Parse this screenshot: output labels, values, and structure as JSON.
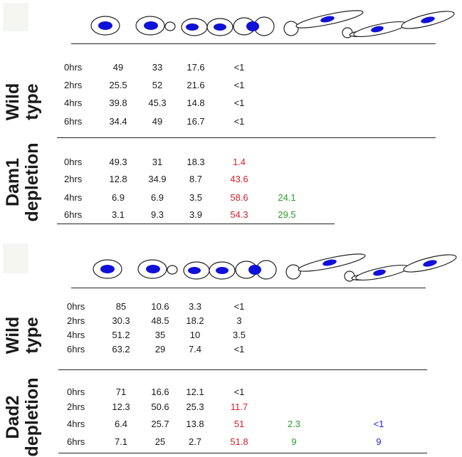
{
  "colors": {
    "nucleus": "#1010d8",
    "default_value": "#1a1a1a",
    "stage4": "#d01f2a",
    "stage5": "#2a9a2a",
    "stage6": "#2020e0"
  },
  "panels": [
    {
      "id": "dam1",
      "groups": [
        {
          "label_line1": "Wild",
          "label_line2": "type",
          "rows": [
            {
              "time": "0hrs",
              "values": [
                "49",
                "33",
                "17.6",
                "<1",
                "",
                ""
              ]
            },
            {
              "time": "2hrs",
              "values": [
                "25.5",
                "52",
                "21.6",
                "<1",
                "",
                ""
              ]
            },
            {
              "time": "4hrs",
              "values": [
                "39.8",
                "45.3",
                "14.8",
                "<1",
                "",
                ""
              ]
            },
            {
              "time": "6hrs",
              "values": [
                "34.4",
                "49",
                "16.7",
                "<1",
                "",
                ""
              ]
            }
          ]
        },
        {
          "label_line1": "Dam1",
          "label_line2": "depletion",
          "rows": [
            {
              "time": "0hrs",
              "values": [
                "49.3",
                "31",
                "18.3",
                "1.4",
                "",
                ""
              ]
            },
            {
              "time": "2hrs",
              "values": [
                "12.8",
                "34.9",
                "8.7",
                "43.6",
                "",
                ""
              ]
            },
            {
              "time": "4hrs",
              "values": [
                "6.9",
                "6.9",
                "3.5",
                "58.6",
                "24.1",
                ""
              ]
            },
            {
              "time": "6hrs",
              "values": [
                "3.1",
                "9.3",
                "3.9",
                "54.3",
                "29.5",
                ""
              ]
            }
          ]
        }
      ]
    },
    {
      "id": "dad2",
      "groups": [
        {
          "label_line1": "Wild",
          "label_line2": "type",
          "rows": [
            {
              "time": "0hrs",
              "values": [
                "85",
                "10.6",
                "3.3",
                "<1",
                "",
                ""
              ]
            },
            {
              "time": "2hrs",
              "values": [
                "30.3",
                "48.5",
                "18.2",
                "3",
                "",
                ""
              ]
            },
            {
              "time": "4hrs",
              "values": [
                "51.2",
                "35",
                "10",
                "3.5",
                "",
                ""
              ]
            },
            {
              "time": "6hrs",
              "values": [
                "63.2",
                "29",
                "7.4",
                "<1",
                "",
                ""
              ]
            }
          ]
        },
        {
          "label_line1": "Dad2",
          "label_line2": "depletion",
          "rows": [
            {
              "time": "0hrs",
              "values": [
                "71",
                "16.6",
                "12.1",
                "<1",
                "",
                ""
              ]
            },
            {
              "time": "2hrs",
              "values": [
                "12.3",
                "50.6",
                "25.3",
                "11.7",
                "",
                ""
              ]
            },
            {
              "time": "4hrs",
              "values": [
                "6.4",
                "25.7",
                "13.8",
                "51",
                "2.3",
                "<1"
              ]
            },
            {
              "time": "6hrs",
              "values": [
                "7.1",
                "25",
                "2.7",
                "51.8",
                "9",
                "9"
              ]
            }
          ]
        }
      ]
    }
  ]
}
